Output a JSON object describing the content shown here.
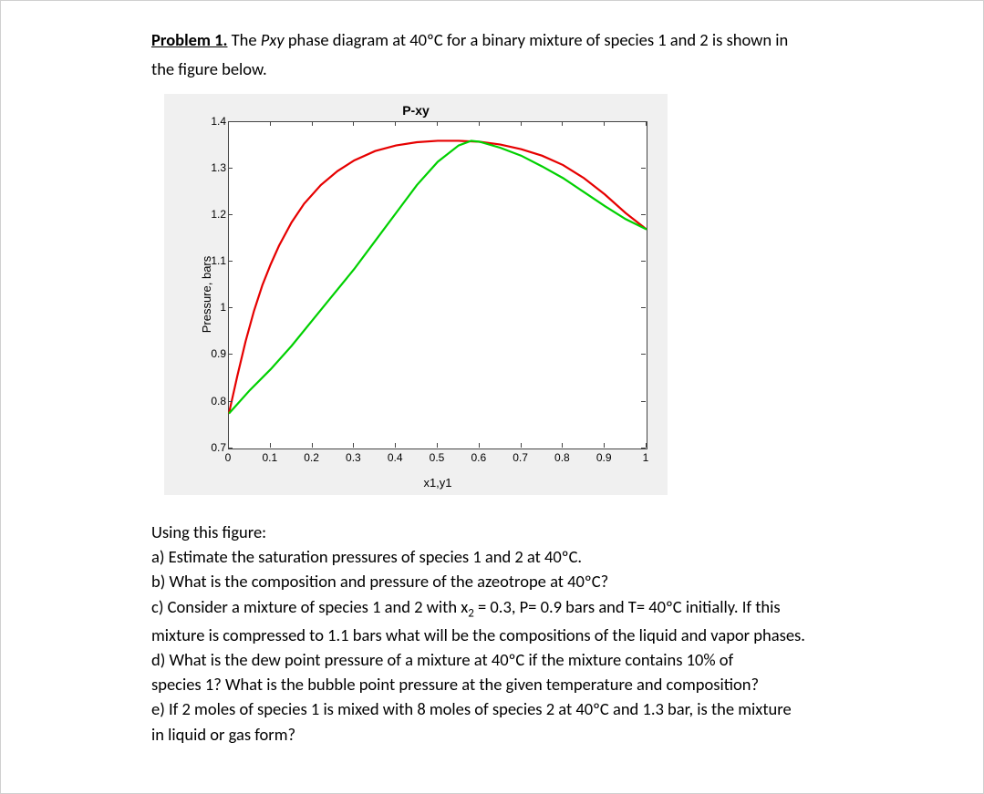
{
  "problem": {
    "label": "Problem 1.",
    "title_pre": "The ",
    "title_italic": "Pxy",
    "title_post": " phase diagram at 40ºC for a binary mixture of species 1 and 2 is shown in",
    "subtitle": "the figure below."
  },
  "chart": {
    "type": "line",
    "title": "P-xy",
    "xlabel": "x1,y1",
    "ylabel": "Pressure, bars",
    "background_color": "#f0f0f0",
    "plot_background": "#ffffff",
    "axis_color": "#444444",
    "xlim": [
      0,
      1
    ],
    "ylim": [
      0.7,
      1.4
    ],
    "xticks": [
      0,
      0.1,
      0.2,
      0.3,
      0.4,
      0.5,
      0.6,
      0.7,
      0.8,
      0.9,
      1
    ],
    "xtick_labels": [
      "0",
      "0.1",
      "0.2",
      "0.3",
      "0.4",
      "0.5",
      "0.6",
      "0.7",
      "0.8",
      "0.9",
      "1"
    ],
    "yticks": [
      0.7,
      0.8,
      0.9,
      1,
      1.1,
      1.2,
      1.3,
      1.4
    ],
    "ytick_labels": [
      "0.7",
      "0.8",
      "0.9",
      "1",
      "1.1",
      "1.2",
      "1.3",
      "1.4"
    ],
    "title_fontsize": 14,
    "label_fontsize": 13,
    "tick_fontsize": 12,
    "series": {
      "bubble": {
        "color": "#e60000",
        "line_width": 2.2,
        "points": [
          [
            0.0,
            0.775
          ],
          [
            0.02,
            0.855
          ],
          [
            0.04,
            0.93
          ],
          [
            0.06,
            0.995
          ],
          [
            0.08,
            1.05
          ],
          [
            0.1,
            1.095
          ],
          [
            0.12,
            1.135
          ],
          [
            0.15,
            1.185
          ],
          [
            0.18,
            1.225
          ],
          [
            0.22,
            1.265
          ],
          [
            0.26,
            1.295
          ],
          [
            0.3,
            1.318
          ],
          [
            0.35,
            1.338
          ],
          [
            0.4,
            1.35
          ],
          [
            0.45,
            1.357
          ],
          [
            0.5,
            1.36
          ],
          [
            0.55,
            1.36
          ],
          [
            0.6,
            1.358
          ],
          [
            0.65,
            1.352
          ],
          [
            0.7,
            1.342
          ],
          [
            0.75,
            1.328
          ],
          [
            0.8,
            1.308
          ],
          [
            0.85,
            1.28
          ],
          [
            0.9,
            1.245
          ],
          [
            0.95,
            1.205
          ],
          [
            1.0,
            1.17
          ]
        ]
      },
      "dew": {
        "color": "#00d000",
        "line_width": 2.2,
        "points": [
          [
            0.0,
            0.775
          ],
          [
            0.05,
            0.825
          ],
          [
            0.1,
            0.87
          ],
          [
            0.15,
            0.92
          ],
          [
            0.2,
            0.975
          ],
          [
            0.25,
            1.03
          ],
          [
            0.3,
            1.085
          ],
          [
            0.35,
            1.145
          ],
          [
            0.4,
            1.205
          ],
          [
            0.45,
            1.265
          ],
          [
            0.5,
            1.315
          ],
          [
            0.55,
            1.35
          ],
          [
            0.58,
            1.36
          ],
          [
            0.6,
            1.358
          ],
          [
            0.65,
            1.345
          ],
          [
            0.7,
            1.328
          ],
          [
            0.75,
            1.305
          ],
          [
            0.8,
            1.28
          ],
          [
            0.85,
            1.25
          ],
          [
            0.9,
            1.22
          ],
          [
            0.95,
            1.192
          ],
          [
            1.0,
            1.17
          ]
        ]
      }
    }
  },
  "questions": {
    "intro": "Using this figure:",
    "a": "a)   Estimate the saturation pressures of species 1 and 2 at 40ºC.",
    "b": "b)   What is the composition and pressure of the azeotrope at 40ºC?",
    "c_pre": "c) Consider a mixture of species 1 and 2 with x",
    "c_sub": "2",
    "c_post": " = 0.3, P= 0.9 bars and T= 40ºC initially. If this",
    "c_line2": "mixture is compressed to 1.1 bars what will be the compositions of the liquid and vapor phases.",
    "d_line1": "d) What is the dew point pressure of a mixture at 40ºC if the mixture contains 10% of",
    "d_line2": "species 1? What is the bubble point pressure at the given temperature and composition?",
    "e_line1": "e) If 2 moles of species 1 is mixed with 8 moles of species 2 at 40ºC and 1.3 bar, is the mixture",
    "e_line2": "in liquid or gas form?"
  }
}
